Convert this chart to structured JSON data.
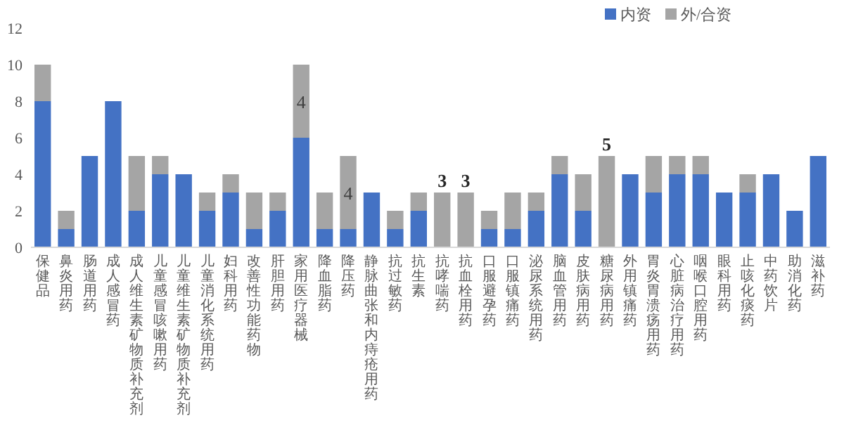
{
  "chart_data": {
    "type": "bar",
    "stacked": true,
    "legend": "top right",
    "ylim": [
      0,
      12
    ],
    "yticks": [
      0,
      2,
      4,
      6,
      8,
      10,
      12
    ],
    "categories": [
      "保健品",
      "鼻炎用药",
      "肠道用药",
      "成人感冒药",
      "成人维生素矿物质补充剂",
      "儿童感冒咳嗽用药",
      "儿童维生素矿物质补充剂",
      "儿童消化系统用药",
      "妇科用药",
      "改善性功能药物",
      "肝胆用药",
      "家用医疗器械",
      "降血脂药",
      "降压药",
      "静脉曲张和内痔疮用药",
      "抗过敏药",
      "抗生素",
      "抗哮喘药",
      "抗血栓用药",
      "口服避孕药",
      "口服镇痛药",
      "泌尿系统用药",
      "脑血管用药",
      "皮肤病用药",
      "糖尿病用药",
      "外用镇痛药",
      "胃炎胃溃疡用药",
      "心脏病治疗用药",
      "咽喉口腔用药",
      "眼科用药",
      "止咳化痰药",
      "中药饮片",
      "助消化药",
      "滋补药"
    ],
    "series": [
      {
        "name": "内资",
        "color": "#4472c4",
        "values": [
          8,
          1,
          5,
          8,
          2,
          4,
          4,
          2,
          3,
          1,
          2,
          6,
          1,
          1,
          3,
          1,
          2,
          0,
          0,
          1,
          1,
          2,
          4,
          2,
          0,
          4,
          3,
          4,
          4,
          3,
          3,
          4,
          2,
          5
        ]
      },
      {
        "name": "外/合资",
        "color": "#a5a5a5",
        "values": [
          2,
          1,
          0,
          0,
          3,
          1,
          0,
          1,
          1,
          2,
          1,
          4,
          2,
          4,
          0,
          1,
          1,
          3,
          3,
          1,
          2,
          1,
          1,
          2,
          5,
          0,
          2,
          1,
          1,
          0,
          1,
          0,
          0,
          0
        ],
        "value_labels": [
          null,
          null,
          null,
          null,
          null,
          null,
          null,
          null,
          null,
          null,
          null,
          "4",
          null,
          "4",
          null,
          null,
          null,
          "3",
          "3",
          null,
          null,
          null,
          null,
          null,
          "5",
          null,
          null,
          null,
          null,
          null,
          null,
          null,
          null,
          null
        ]
      }
    ]
  }
}
